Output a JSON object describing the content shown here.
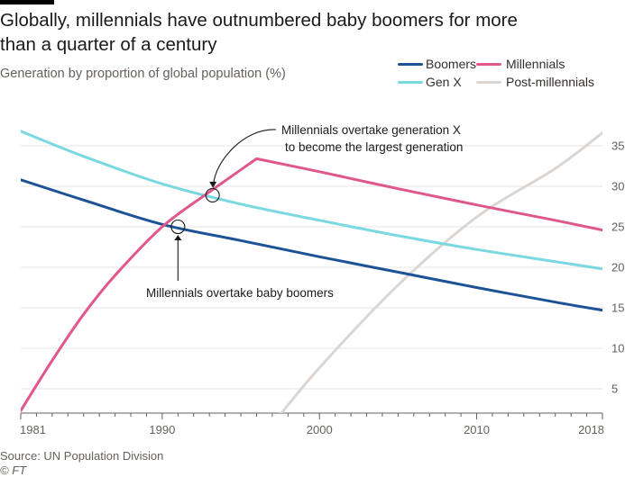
{
  "header": {
    "title_line1": "Globally, millennials have outnumbered baby boomers for more",
    "title_line2": "than a quarter of a century",
    "subtitle": "Generation by proportion of global population (%)"
  },
  "footer": {
    "source": "Source: UN Population Division",
    "copyright": "© FT"
  },
  "colors": {
    "boomers": "#1d5296",
    "genx": "#7ad9e0",
    "millennials": "#e0578c",
    "post_millennials": "#dcd6d2",
    "axis": "#66605c",
    "grid": "#e8e4e0"
  },
  "chart_data": {
    "type": "line",
    "title": "Globally, millennials have outnumbered baby boomers for more than a quarter of a century",
    "subtitle": "Generation by proportion of global population (%)",
    "xlabel": "",
    "ylabel": "",
    "xlim": [
      1981,
      2018
    ],
    "ylim": [
      2,
      38
    ],
    "x_ticks": [
      1981,
      1990,
      2000,
      2010,
      2018
    ],
    "y_ticks": [
      5,
      10,
      15,
      20,
      25,
      30,
      35
    ],
    "grid": "horizontal",
    "legend_position": "top-right",
    "series": [
      {
        "key": "boomers",
        "name": "Boomers",
        "x": [
          1981,
          1985,
          1990,
          1995,
          2000,
          2005,
          2010,
          2015,
          2018
        ],
        "y": [
          30.8,
          28.3,
          25.3,
          23.3,
          21.3,
          19.4,
          17.5,
          15.7,
          14.7
        ]
      },
      {
        "key": "genx",
        "name": "Gen X",
        "x": [
          1981,
          1985,
          1990,
          1995,
          2000,
          2005,
          2010,
          2015,
          2018
        ],
        "y": [
          36.8,
          33.7,
          30.3,
          27.8,
          25.8,
          23.9,
          22.2,
          20.7,
          19.8
        ]
      },
      {
        "key": "millennials",
        "name": "Millennials",
        "x": [
          1981,
          1983,
          1985,
          1987,
          1990,
          1993,
          1996,
          2000,
          2005,
          2010,
          2015,
          2018
        ],
        "y": [
          2.3,
          8.5,
          14.2,
          19.0,
          25.0,
          29.3,
          33.4,
          31.8,
          29.7,
          27.7,
          25.8,
          24.6
        ]
      },
      {
        "key": "post_millennials",
        "name": "Post-millennials",
        "x": [
          1997,
          2000,
          2005,
          2010,
          2015,
          2018
        ],
        "y": [
          0.6,
          7.6,
          17.8,
          26.2,
          32.2,
          36.6
        ]
      }
    ],
    "annotations": [
      {
        "name": "annotation-millennials-overtake-boomers",
        "text": "Millennials overtake baby boomers",
        "x": 1991.0,
        "y": 25.0
      },
      {
        "name": "annotation-millennials-overtake-genx",
        "text_line1": "Millennials overtake generation X",
        "text_line2": "to become the largest generation",
        "x": 1993.2,
        "y": 28.9
      }
    ]
  }
}
